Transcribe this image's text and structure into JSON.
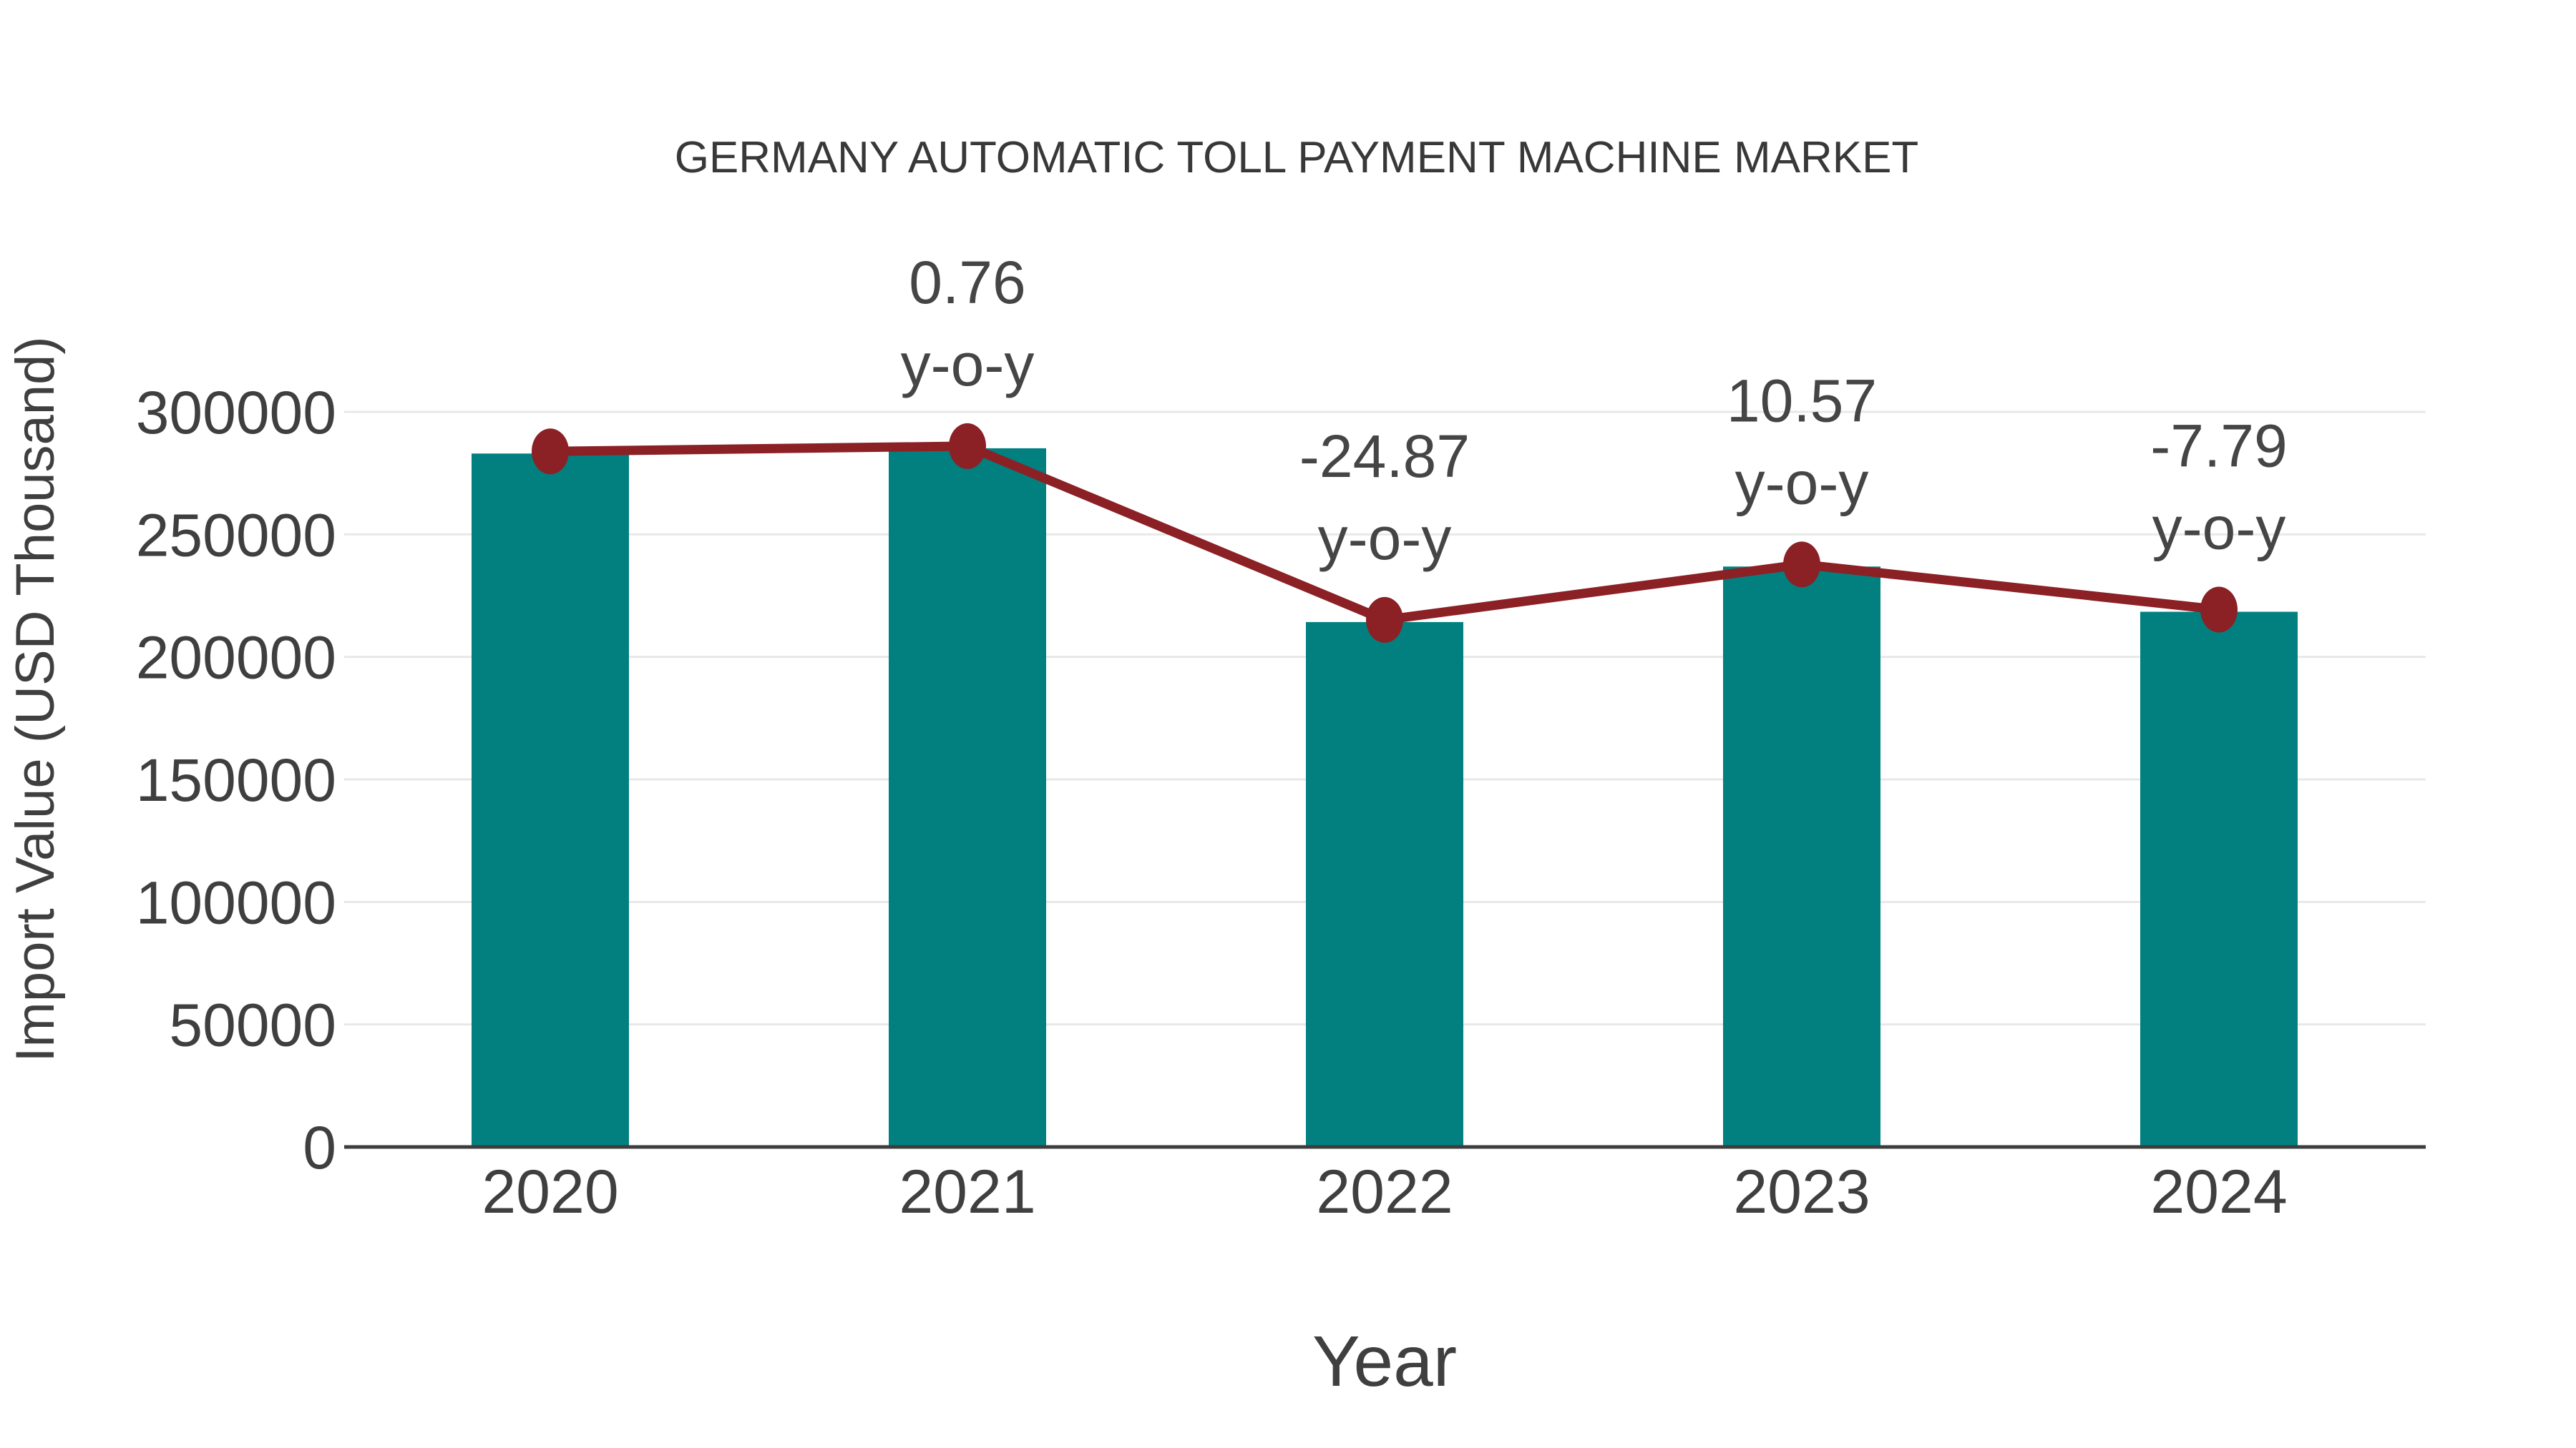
{
  "page": {
    "background": "#ffffff"
  },
  "chart_data": {
    "type": "bar",
    "title": "GERMANY AUTOMATIC TOLL PAYMENT MACHINE MARKET",
    "xlabel": "Year",
    "ylabel": "Import Value (USD Thousand)",
    "categories": [
      "2020",
      "2021",
      "2022",
      "2023",
      "2024"
    ],
    "series": [
      {
        "name": "Import Value",
        "type": "bar",
        "color": "#028080",
        "values": [
          283000,
          285150,
          214230,
          236875,
          218420
        ]
      },
      {
        "name": "y-o-y change",
        "type": "line",
        "color": "#8b2025",
        "values_pct": [
          null,
          0.76,
          -24.87,
          10.57,
          -7.79
        ]
      }
    ],
    "annotations": [
      {
        "category": "2021",
        "line1": "0.76",
        "line2": "y-o-y"
      },
      {
        "category": "2022",
        "line1": "-24.87",
        "line2": "y-o-y"
      },
      {
        "category": "2023",
        "line1": "10.57",
        "line2": "y-o-y"
      },
      {
        "category": "2024",
        "line1": "-7.79",
        "line2": "y-o-y"
      }
    ],
    "yticks": [
      0,
      50000,
      100000,
      150000,
      200000,
      250000,
      300000
    ],
    "ylim": [
      0,
      320000
    ],
    "grid": true,
    "legend": false,
    "colors": {
      "bar": "#028080",
      "line": "#8b2025",
      "marker": "#8b2025",
      "grid": "#e8e8e8",
      "axis": "#3d3d3d",
      "text": "#3f3f3f"
    }
  }
}
